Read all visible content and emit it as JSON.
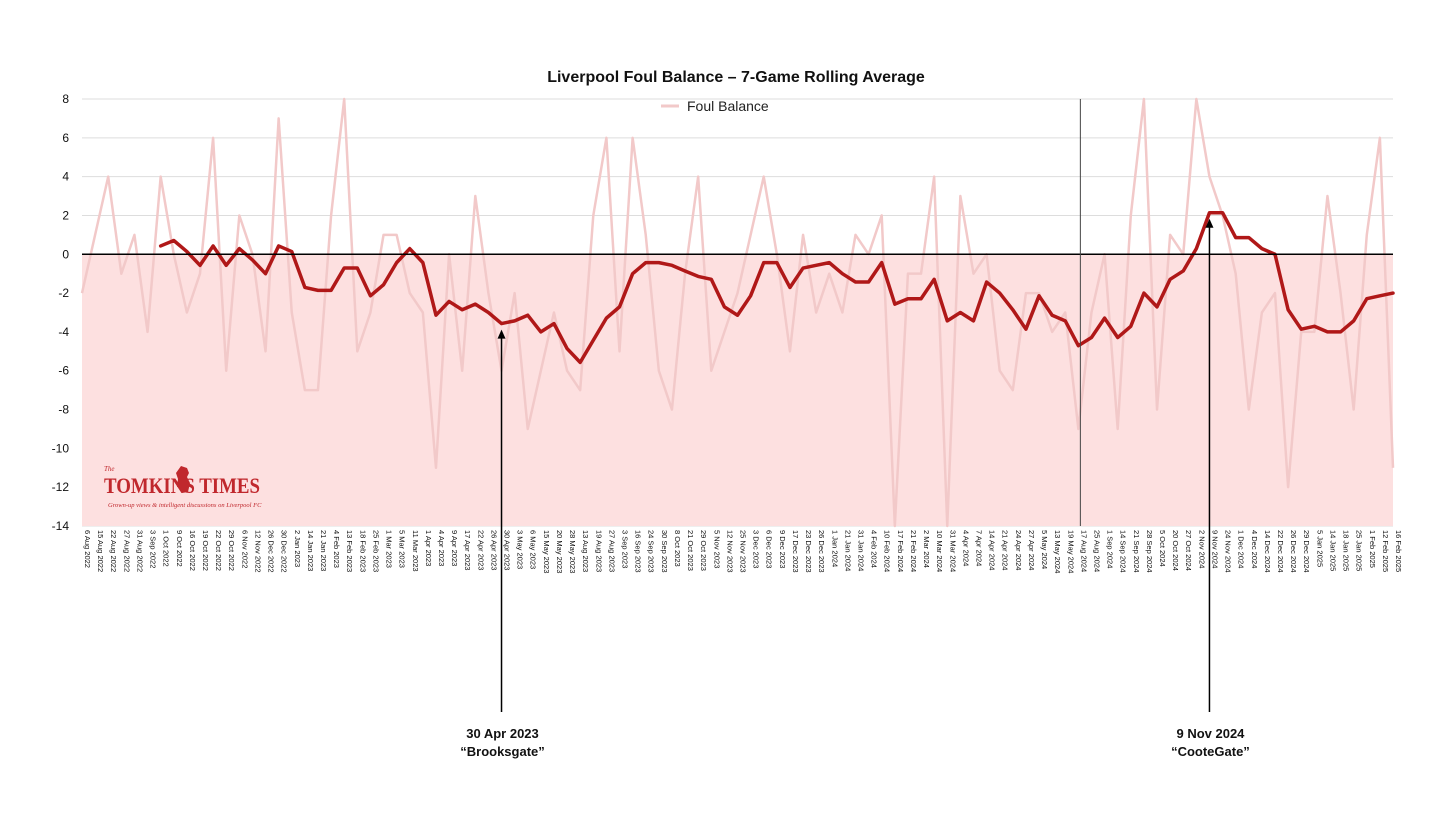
{
  "chart_data": {
    "type": "line",
    "title": "Liverpool Foul Balance – 7-Game Rolling Average",
    "ylim": [
      -14,
      8
    ],
    "yticks": [
      8,
      6,
      4,
      2,
      0,
      -2,
      -4,
      -6,
      -8,
      -10,
      -12,
      -14
    ],
    "grid": true,
    "legend_placement": "top-center",
    "colors": {
      "raw": "#f2c9c9",
      "rolling": "#b01818",
      "fill": "#fde0e0",
      "axis": "#000000"
    },
    "categories": [
      "6 Aug 2022",
      "15 Aug 2022",
      "22 Aug 2022",
      "27 Aug 2022",
      "31 Aug 2022",
      "3 Sep 2022",
      "1 Oct 2022",
      "9 Oct 2022",
      "16 Oct 2022",
      "19 Oct 2022",
      "22 Oct 2022",
      "29 Oct 2022",
      "6 Nov 2022",
      "12 Nov 2022",
      "26 Dec 2022",
      "30 Dec 2022",
      "2 Jan 2023",
      "14 Jan 2023",
      "21 Jan 2023",
      "4 Feb 2023",
      "13 Feb 2023",
      "18 Feb 2023",
      "25 Feb 2023",
      "1 Mar 2023",
      "5 Mar 2023",
      "11 Mar 2023",
      "1 Apr 2023",
      "4 Apr 2023",
      "9 Apr 2023",
      "17 Apr 2023",
      "22 Apr 2023",
      "26 Apr 2023",
      "30 Apr 2023",
      "3 May 2023",
      "6 May 2023",
      "15 May 2023",
      "20 May 2023",
      "28 May 2023",
      "13 Aug 2023",
      "19 Aug 2023",
      "27 Aug 2023",
      "3 Sep 2023",
      "16 Sep 2023",
      "24 Sep 2023",
      "30 Sep 2023",
      "8 Oct 2023",
      "21 Oct 2023",
      "29 Oct 2023",
      "5 Nov 2023",
      "12 Nov 2023",
      "25 Nov 2023",
      "3 Dec 2023",
      "6 Dec 2023",
      "9 Dec 2023",
      "17 Dec 2023",
      "23 Dec 2023",
      "26 Dec 2023",
      "1 Jan 2024",
      "21 Jan 2024",
      "31 Jan 2024",
      "4 Feb 2024",
      "10 Feb 2024",
      "17 Feb 2024",
      "21 Feb 2024",
      "2 Mar 2024",
      "10 Mar 2024",
      "31 Mar 2024",
      "4 Apr 2024",
      "7 Apr 2024",
      "14 Apr 2024",
      "21 Apr 2024",
      "24 Apr 2024",
      "27 Apr 2024",
      "5 May 2024",
      "13 May 2024",
      "19 May 2024",
      "17 Aug 2024",
      "25 Aug 2024",
      "1 Sep 2024",
      "14 Sep 2024",
      "21 Sep 2024",
      "28 Sep 2024",
      "5 Oct 2024",
      "20 Oct 2024",
      "27 Oct 2024",
      "2 Nov 2024",
      "9 Nov 2024",
      "24 Nov 2024",
      "1 Dec 2024",
      "4 Dec 2024",
      "14 Dec 2024",
      "22 Dec 2024",
      "26 Dec 2024",
      "29 Dec 2024",
      "5 Jan 2025",
      "14 Jan 2025",
      "18 Jan 2025",
      "25 Jan 2025",
      "1 Feb 2025",
      "12 Feb 2025",
      "16 Feb 2025"
    ],
    "series": [
      {
        "name": "Foul Balance",
        "values": [
          -2,
          1,
          4,
          -1,
          1,
          -4,
          4,
          0,
          -3,
          -1,
          6,
          -6,
          2,
          0,
          -5,
          7,
          -3,
          -7,
          -7,
          2,
          8,
          -5,
          -3,
          1,
          1,
          -2,
          -3,
          -11,
          0,
          -6,
          3,
          -2,
          -6,
          -2,
          -9,
          -6,
          -3,
          -6,
          -7,
          2,
          6,
          -5,
          6,
          1,
          -6,
          -8,
          -1,
          4,
          -6,
          -4,
          -2,
          1,
          4,
          0,
          -5,
          1,
          -3,
          -1,
          -3,
          1,
          0,
          2,
          -14,
          -1,
          -1,
          4,
          -14,
          3,
          -1,
          0,
          -6,
          -7,
          -2,
          -2,
          -4,
          -3,
          -9,
          -3,
          0,
          -9,
          2,
          8,
          -8,
          1,
          0,
          8,
          4,
          2,
          -1,
          -8,
          -3,
          -2,
          -12,
          -4,
          -4,
          3,
          -2,
          -8,
          1,
          6,
          -11
        ]
      },
      {
        "values": [
          null,
          null,
          null,
          null,
          null,
          null,
          0.43,
          0.71,
          0.14,
          -0.57,
          0.43,
          -0.57,
          0.29,
          -0.29,
          -1.0,
          0.43,
          0.14,
          -1.71,
          -1.86,
          -1.86,
          -0.71,
          -0.71,
          -2.14,
          -1.57,
          -0.43,
          0.29,
          -0.43,
          -3.14,
          -2.43,
          -2.86,
          -2.57,
          -3.0,
          -3.57,
          -3.43,
          -3.14,
          -4.0,
          -3.57,
          -4.86,
          -5.57,
          -4.43,
          -3.29,
          -2.71,
          -1.0,
          -0.43,
          -0.43,
          -0.57,
          -0.86,
          -1.14,
          -1.29,
          -2.71,
          -3.14,
          -2.14,
          -0.43,
          -0.43,
          -1.71,
          -0.71,
          -0.57,
          -0.43,
          -1.0,
          -1.43,
          -1.43,
          -0.43,
          -2.57,
          -2.29,
          -2.29,
          -1.29,
          -3.43,
          -3.0,
          -3.43,
          -1.43,
          -2.0,
          -2.86,
          -3.86,
          -2.14,
          -3.14,
          -3.43,
          -4.71,
          -4.29,
          -3.29,
          -4.29,
          -3.71,
          -2.0,
          -2.71,
          -1.29,
          -0.86,
          0.29,
          2.14,
          2.14,
          0.86,
          0.86,
          0.29,
          0.0,
          -2.86,
          -3.86,
          -3.71,
          -4.0,
          -4.0,
          -3.43,
          -2.29,
          -2.14,
          -2.0
        ]
      }
    ],
    "annotations": [
      {
        "category": "30 Apr 2023",
        "date_label": "30 Apr 2023",
        "name_label": "“Brooksgate”"
      },
      {
        "category": "9 Nov 2024",
        "date_label": "9 Nov 2024",
        "name_label": "“CooteGate”"
      }
    ],
    "season_divider_category": "17 Aug 2024"
  },
  "logo": {
    "the": "The",
    "name": "TOMKINS TIMES",
    "tagline": "Grown-up views & intelligent discussions on Liverpool FC"
  }
}
